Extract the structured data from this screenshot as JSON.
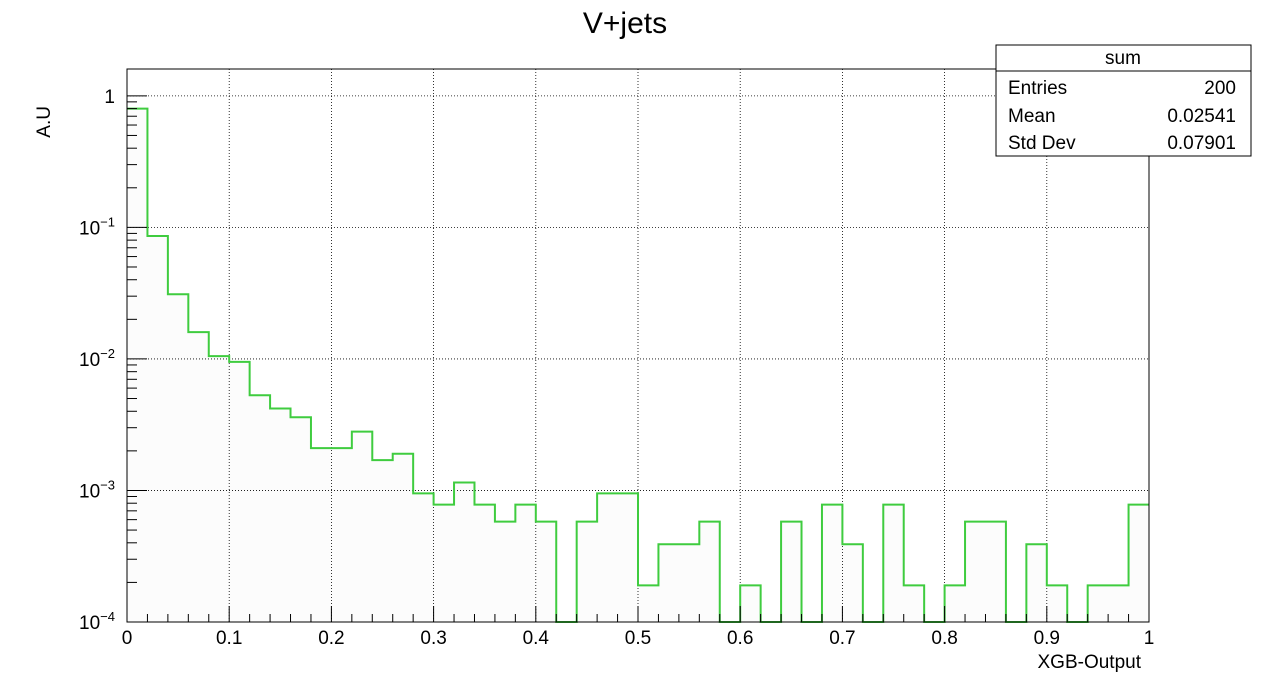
{
  "chart_data": {
    "type": "histogram",
    "title": "V+jets",
    "xlabel": "XGB-Output",
    "ylabel": "A.U",
    "xlim": [
      0,
      1
    ],
    "ylim": [
      0.0001,
      1.6
    ],
    "yscale": "log",
    "grid": true,
    "line_color": "#3fcc3f",
    "fill_color": "#fcfcfc",
    "x_tick_labels": [
      "0",
      "0.1",
      "0.2",
      "0.3",
      "0.4",
      "0.5",
      "0.6",
      "0.7",
      "0.8",
      "0.9",
      "1"
    ],
    "y_tick_labels": [
      {
        "base": "1",
        "exp": ""
      },
      {
        "base": "10",
        "exp": "−1"
      },
      {
        "base": "10",
        "exp": "−2"
      },
      {
        "base": "10",
        "exp": "−3"
      },
      {
        "base": "10",
        "exp": "−4"
      }
    ],
    "bin_edges": [
      0,
      0.02,
      0.04,
      0.06,
      0.08,
      0.1,
      0.12,
      0.14,
      0.16,
      0.18,
      0.2,
      0.22,
      0.24,
      0.26,
      0.28,
      0.3,
      0.32,
      0.34,
      0.36,
      0.38,
      0.4,
      0.42,
      0.44,
      0.46,
      0.48,
      0.5,
      0.52,
      0.54,
      0.56,
      0.58,
      0.6,
      0.62,
      0.64,
      0.66,
      0.68,
      0.7,
      0.72,
      0.74,
      0.76,
      0.78,
      0.8,
      0.82,
      0.84,
      0.86,
      0.88,
      0.9,
      0.92,
      0.94,
      0.96,
      0.98,
      1.0
    ],
    "values": [
      0.8,
      0.086,
      0.031,
      0.016,
      0.0105,
      0.0095,
      0.0053,
      0.0042,
      0.0036,
      0.0021,
      0.0021,
      0.0028,
      0.0017,
      0.0019,
      0.00095,
      0.00078,
      0.00115,
      0.00078,
      0.00058,
      0.00078,
      0.00058,
      0.0001,
      0.00058,
      0.00095,
      0.00095,
      0.00019,
      0.00039,
      0.00039,
      0.00058,
      0.0001,
      0.00019,
      0.0001,
      0.00058,
      0.0001,
      0.00078,
      0.00039,
      0.0001,
      0.00078,
      0.00019,
      0.0001,
      0.00019,
      0.00058,
      0.00058,
      0.0001,
      0.00039,
      0.00019,
      0.0001,
      0.00019,
      0.00019,
      0.00078
    ],
    "stats_box": {
      "title": "sum",
      "rows": [
        {
          "label": "Entries",
          "value": "200"
        },
        {
          "label": "Mean",
          "value": "0.02541"
        },
        {
          "label": "Std Dev",
          "value": "0.07901"
        }
      ]
    }
  }
}
